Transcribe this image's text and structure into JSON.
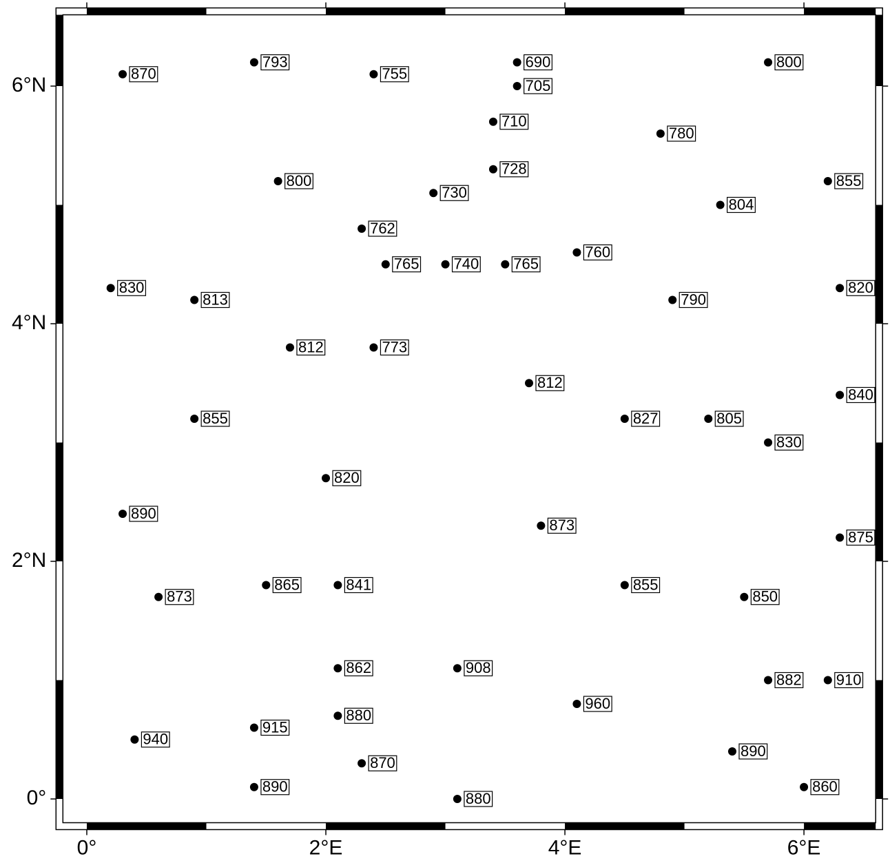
{
  "chart_data": {
    "type": "scatter",
    "xlim": [
      -0.2,
      6.6
    ],
    "ylim": [
      -0.2,
      6.6
    ],
    "xticks": [
      {
        "value": 0,
        "label": "0°"
      },
      {
        "value": 2,
        "label": "2°E"
      },
      {
        "value": 4,
        "label": "4°E"
      },
      {
        "value": 6,
        "label": "6°E"
      }
    ],
    "yticks": [
      {
        "value": 0,
        "label": "0°"
      },
      {
        "value": 2,
        "label": "2°N"
      },
      {
        "value": 4,
        "label": "4°N"
      },
      {
        "value": 6,
        "label": "6°N"
      }
    ],
    "color": "#000000",
    "x": [
      0.3,
      1.4,
      2.4,
      3.6,
      3.6,
      5.7,
      3.4,
      4.8,
      3.4,
      1.6,
      2.9,
      6.2,
      5.3,
      2.3,
      2.5,
      3.0,
      3.5,
      4.1,
      0.2,
      0.9,
      4.9,
      6.3,
      1.7,
      2.4,
      3.7,
      6.3,
      0.9,
      4.5,
      5.2,
      5.7,
      2.0,
      0.3,
      3.8,
      6.3,
      0.6,
      1.5,
      2.1,
      4.5,
      5.5,
      2.1,
      3.1,
      5.7,
      6.2,
      4.1,
      0.4,
      1.4,
      2.1,
      5.4,
      2.3,
      1.4,
      6.0,
      3.1
    ],
    "y": [
      6.1,
      6.2,
      6.1,
      6.2,
      6.0,
      6.2,
      5.7,
      5.6,
      5.3,
      5.2,
      5.1,
      5.2,
      5.0,
      4.8,
      4.5,
      4.5,
      4.5,
      4.6,
      4.3,
      4.2,
      4.2,
      4.3,
      3.8,
      3.8,
      3.5,
      3.4,
      3.2,
      3.2,
      3.2,
      3.0,
      2.7,
      2.4,
      2.3,
      2.2,
      1.7,
      1.8,
      1.8,
      1.8,
      1.7,
      1.1,
      1.1,
      1.0,
      1.0,
      0.8,
      0.5,
      0.6,
      0.7,
      0.4,
      0.3,
      0.1,
      0.1,
      0.0
    ],
    "values": [
      870,
      793,
      755,
      690,
      705,
      800,
      710,
      780,
      728,
      800,
      730,
      855,
      804,
      762,
      765,
      740,
      765,
      760,
      830,
      813,
      790,
      820,
      812,
      773,
      812,
      840,
      855,
      827,
      805,
      830,
      820,
      890,
      873,
      875,
      873,
      865,
      841,
      855,
      850,
      862,
      908,
      882,
      910,
      960,
      940,
      915,
      880,
      890,
      870,
      890,
      860,
      880
    ]
  }
}
